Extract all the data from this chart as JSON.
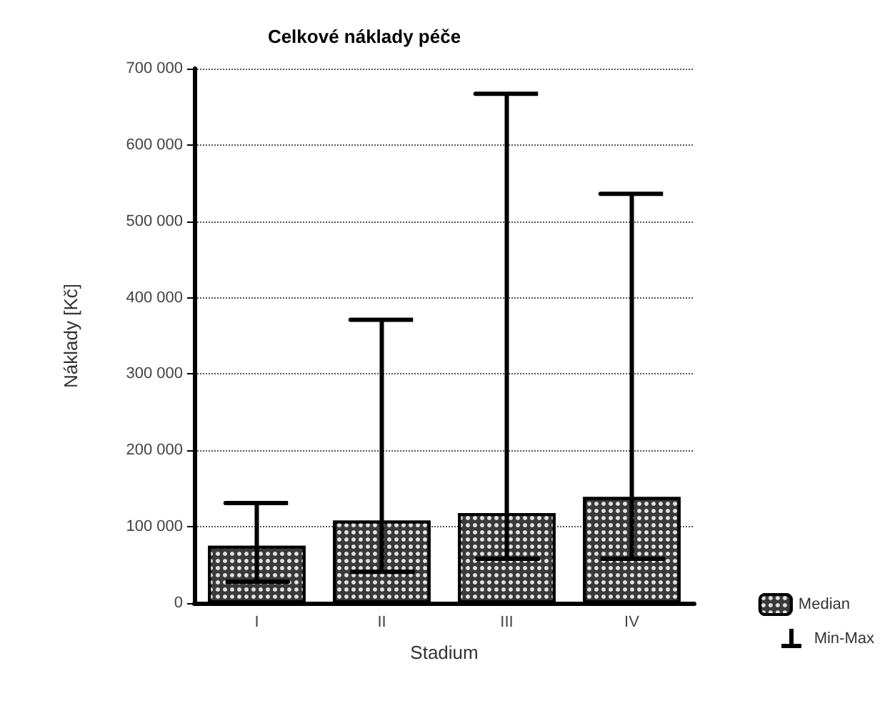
{
  "chart_data": {
    "type": "bar",
    "title": "Celkové náklady péče",
    "xlabel": "Stadium",
    "ylabel": "Náklady [Kč]",
    "categories": [
      "I",
      "II",
      "III",
      "IV"
    ],
    "series": [
      {
        "name": "Median",
        "color": "#3a3a3a",
        "values": [
          75000,
          108000,
          118000,
          139000
        ],
        "errors": [
          [
            28000,
            131000
          ],
          [
            41000,
            371000
          ],
          [
            58000,
            667000
          ],
          [
            58000,
            536000
          ]
        ]
      }
    ],
    "annotations": [
      "Min-Max"
    ],
    "ylim": [
      0,
      700000
    ],
    "yticks": [
      {
        "value": 0,
        "label": "0"
      },
      {
        "value": 100000,
        "label": "100 000"
      },
      {
        "value": 200000,
        "label": "200 000"
      },
      {
        "value": 300000,
        "label": "300 000"
      },
      {
        "value": 400000,
        "label": "400 000"
      },
      {
        "value": 500000,
        "label": "500 000"
      },
      {
        "value": 600000,
        "label": "600 000"
      },
      {
        "value": 700000,
        "label": "700 000"
      }
    ],
    "grid": "y",
    "legend": "bottom right"
  }
}
